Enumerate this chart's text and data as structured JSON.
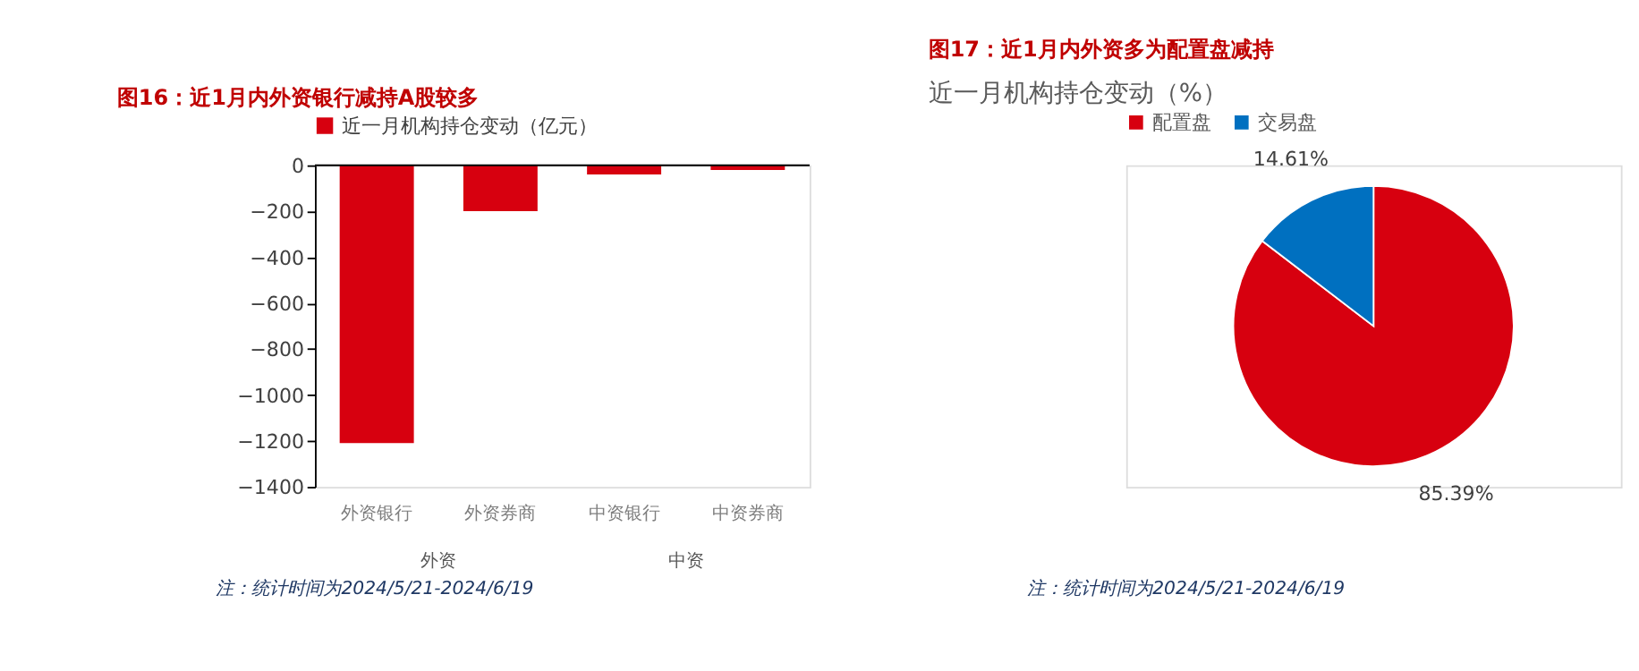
{
  "chart_data": [
    {
      "type": "bar",
      "title": "图16：近1月内外资银行减持A股较多",
      "categories": [
        "外资银行",
        "外资券商",
        "中资银行",
        "中资券商"
      ],
      "series": [
        {
          "name": "近一月机构持仓变动（亿元）",
          "color": "#d7000f",
          "values": [
            -1210,
            -200,
            -40,
            -20
          ]
        }
      ],
      "ylim": [
        -1400,
        0
      ],
      "yticks": [
        -1400,
        -1200,
        -1000,
        -800,
        -600,
        -400,
        -200,
        0
      ],
      "grid": false,
      "legend": "top",
      "annotations": [
        "外资",
        "中资",
        "注：统计时间为2024/5/21-2024/6/19"
      ]
    },
    {
      "type": "pie",
      "title": "图17：近1月内外资多为配置盘减持",
      "subtitle": "近一月机构持仓变动（%）",
      "categories": [
        "配置盘",
        "交易盘"
      ],
      "values": [
        85.39,
        14.61
      ],
      "value_labels": [
        "85.39%",
        "14.61%"
      ],
      "colors": [
        "#d7000f",
        "#0070c0"
      ],
      "legend": "top",
      "annotations": [
        "注：统计时间为2024/5/21-2024/6/19"
      ]
    }
  ]
}
